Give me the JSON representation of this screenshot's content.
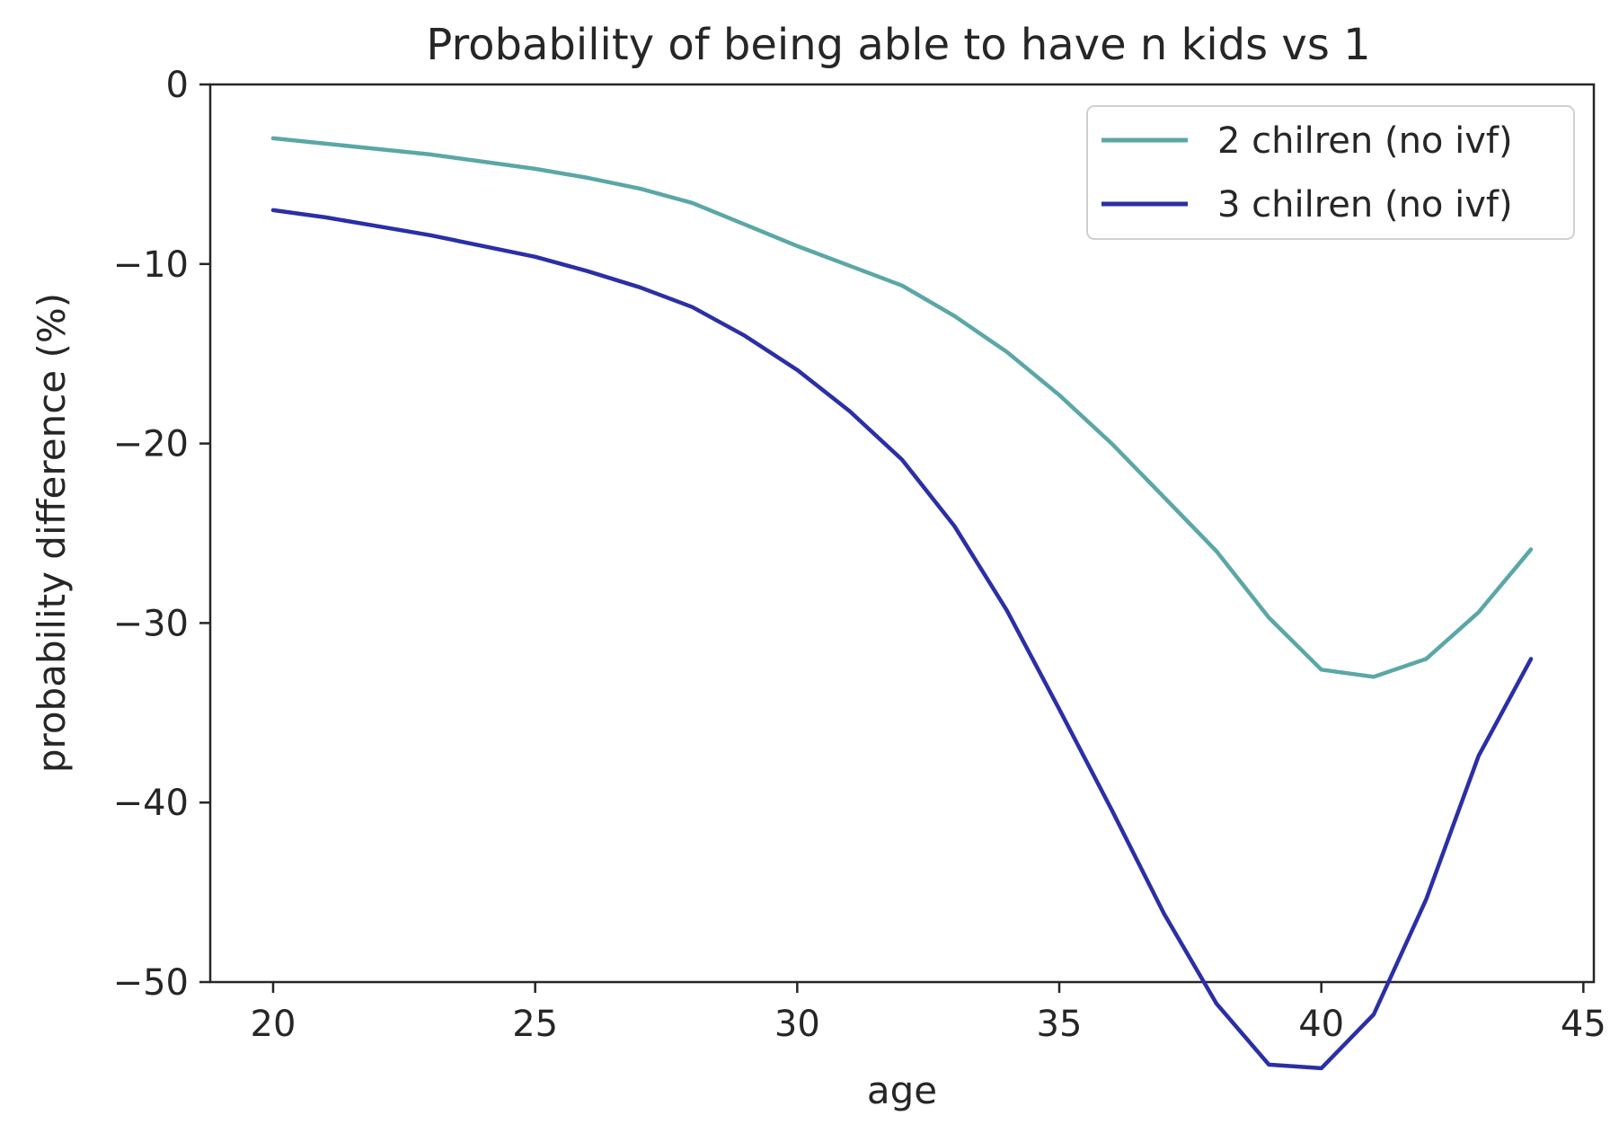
{
  "chart_data": {
    "type": "line",
    "title": "Probability of being able to have n kids vs 1",
    "xlabel": "age",
    "ylabel": "probability difference (%)",
    "xlim": [
      18.8,
      45.2
    ],
    "ylim": [
      -50,
      0
    ],
    "x_ticks": [
      20,
      25,
      30,
      35,
      40,
      45
    ],
    "y_ticks": [
      0,
      -10,
      -20,
      -30,
      -40,
      -50
    ],
    "x_tick_labels": [
      "20",
      "25",
      "30",
      "35",
      "40",
      "45"
    ],
    "y_tick_labels": [
      "0",
      "−10",
      "−20",
      "−30",
      "−40",
      "−50"
    ],
    "grid": false,
    "legend_position": "top-right",
    "x": [
      20,
      21,
      22,
      23,
      24,
      25,
      26,
      27,
      28,
      29,
      30,
      31,
      32,
      33,
      34,
      35,
      36,
      37,
      38,
      39,
      40,
      41,
      42,
      43,
      44
    ],
    "series": [
      {
        "name": "2 chilren (no ivf)",
        "color": "#5aa7a6",
        "values": [
          -3.0,
          -3.3,
          -3.6,
          -3.9,
          -4.3,
          -4.7,
          -5.2,
          -5.8,
          -6.6,
          -7.8,
          -9.0,
          -10.1,
          -11.2,
          -12.9,
          -14.9,
          -17.3,
          -20.0,
          -23.0,
          -26.0,
          -29.7,
          -32.6,
          -33.0,
          -32.0,
          -29.4,
          -25.9
        ]
      },
      {
        "name": "3 chilren (no ivf)",
        "color": "#2b2fa6",
        "values": [
          -7.0,
          -7.4,
          -7.9,
          -8.4,
          -9.0,
          -9.6,
          -10.4,
          -11.3,
          -12.4,
          -14.0,
          -15.9,
          -18.2,
          -20.9,
          -24.6,
          -29.3,
          -34.8,
          -40.4,
          -46.2,
          -51.2,
          -54.6,
          -54.8,
          -51.8,
          -45.4,
          -37.4,
          -32.0
        ]
      }
    ]
  }
}
